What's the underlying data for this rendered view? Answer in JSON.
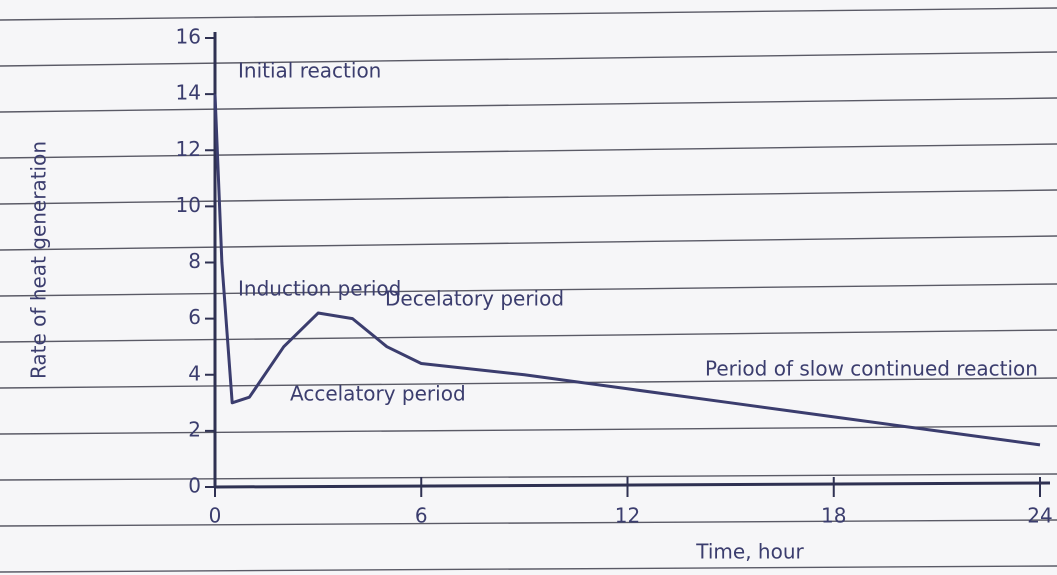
{
  "chart_data": {
    "type": "line",
    "y_label": "Rate of heat generation",
    "x_label": "Time, hour",
    "annotations": [
      "Initial reaction",
      "Induction period",
      "Decelatory period",
      "Accelatory period",
      "Period of slow continued reaction"
    ],
    "x": [
      0,
      0.2,
      0.5,
      1,
      2,
      3,
      4,
      5,
      6,
      9,
      12,
      15,
      18,
      21,
      24
    ],
    "series": [
      {
        "color": "#3b3d6e",
        "values": [
          14,
          8,
          3,
          3.2,
          5,
          6.2,
          6,
          5,
          4.4,
          4,
          3.5,
          3,
          2.5,
          2,
          1.5
        ]
      }
    ],
    "xlim": [
      0,
      24
    ],
    "xticks": [
      0,
      6,
      12,
      18,
      24
    ],
    "ylim": [
      0,
      16
    ],
    "yticks": [
      0,
      2,
      4,
      6,
      8,
      10,
      12,
      14,
      16
    ]
  }
}
